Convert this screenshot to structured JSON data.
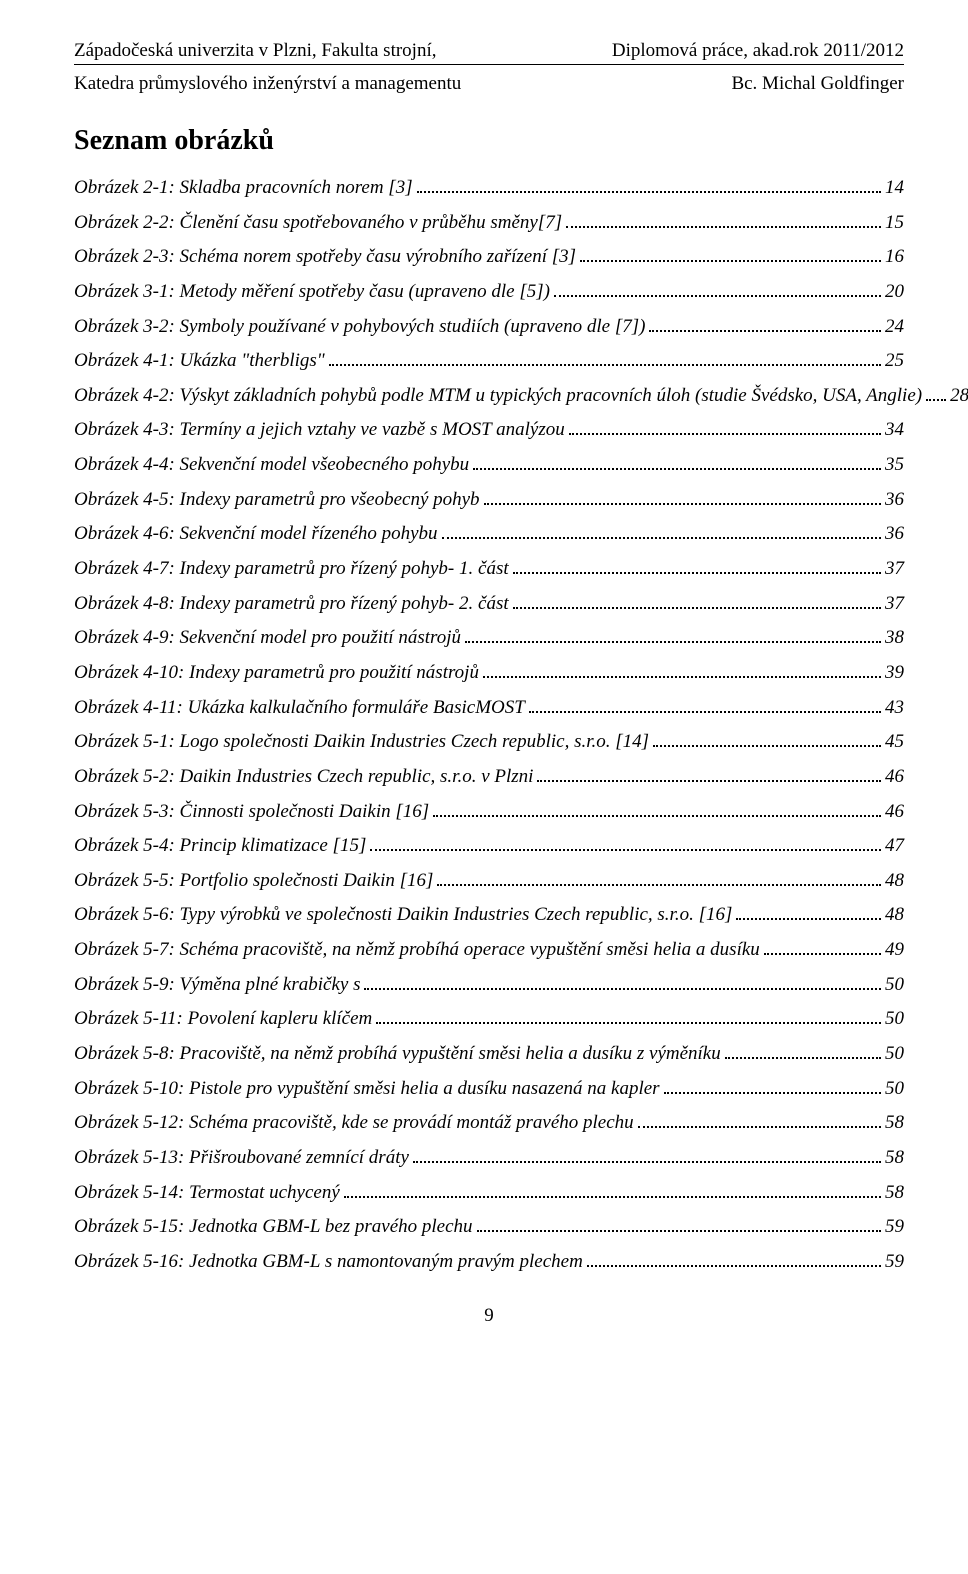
{
  "header": {
    "left1": "Západočeská univerzita v Plzni, Fakulta strojní,",
    "right1": "Diplomová práce, akad.rok 2011/2012",
    "left2": "Katedra průmyslového inženýrství a managementu",
    "right2": "Bc. Michal Goldfinger"
  },
  "title": "Seznam obrázků",
  "entries": [
    {
      "label": "Obrázek 2-1: Skladba pracovních norem [3]",
      "page": "14"
    },
    {
      "label": "Obrázek 2-2: Členění času spotřebovaného v průběhu směny[7]",
      "page": "15"
    },
    {
      "label": "Obrázek 2-3: Schéma norem spotřeby času výrobního zařízení [3]",
      "page": "16"
    },
    {
      "label": "Obrázek 3-1: Metody měření spotřeby času (upraveno dle [5])",
      "page": "20"
    },
    {
      "label": "Obrázek 3-2: Symboly používané v pohybových studiích (upraveno dle [7])",
      "page": "24"
    },
    {
      "label": "Obrázek 4-1: Ukázka \"therbligs\"",
      "page": "25"
    },
    {
      "label": "Obrázek 4-2: Výskyt základních pohybů podle MTM u typických pracovních úloh (studie Švédsko, USA, Anglie)",
      "page": "28"
    },
    {
      "label": "Obrázek 4-3: Termíny a jejich vztahy ve vazbě s MOST analýzou",
      "page": "34"
    },
    {
      "label": "Obrázek 4-4: Sekvenční model všeobecného pohybu",
      "page": "35"
    },
    {
      "label": "Obrázek 4-5: Indexy parametrů pro všeobecný pohyb",
      "page": "36"
    },
    {
      "label": "Obrázek 4-6: Sekvenční model řízeného pohybu",
      "page": "36"
    },
    {
      "label": "Obrázek 4-7: Indexy parametrů pro řízený pohyb- 1. část",
      "page": "37"
    },
    {
      "label": "Obrázek 4-8: Indexy parametrů pro řízený pohyb- 2. část",
      "page": "37"
    },
    {
      "label": "Obrázek 4-9: Sekvenční model pro použití nástrojů",
      "page": "38"
    },
    {
      "label": "Obrázek 4-10: Indexy parametrů pro použití nástrojů",
      "page": "39"
    },
    {
      "label": "Obrázek 4-11: Ukázka kalkulačního formuláře BasicMOST",
      "page": "43"
    },
    {
      "label": "Obrázek 5-1: Logo společnosti Daikin Industries Czech republic, s.r.o. [14]",
      "page": "45"
    },
    {
      "label": "Obrázek 5-2: Daikin Industries Czech republic, s.r.o. v Plzni",
      "page": "46"
    },
    {
      "label": "Obrázek 5-3: Činnosti společnosti Daikin [16]",
      "page": "46"
    },
    {
      "label": "Obrázek 5-4: Princip klimatizace [15]",
      "page": "47"
    },
    {
      "label": "Obrázek 5-5: Portfolio společnosti Daikin [16]",
      "page": "48"
    },
    {
      "label": "Obrázek 5-6: Typy výrobků ve společnosti Daikin Industries Czech republic, s.r.o. [16]",
      "page": "48"
    },
    {
      "label": "Obrázek 5-7: Schéma pracoviště, na němž probíhá operace vypuštění směsi helia a dusíku",
      "page": "49"
    },
    {
      "label": "Obrázek 5-9: Výměna plné krabičky s",
      "page": "50"
    },
    {
      "label": "Obrázek 5-11: Povolení kapleru klíčem",
      "page": "50"
    },
    {
      "label": "Obrázek 5-8: Pracoviště, na němž probíhá vypuštění směsi helia a dusíku z výměníku",
      "page": "50"
    },
    {
      "label": "Obrázek 5-10: Pistole pro vypuštění směsi helia a dusíku nasazená na kapler",
      "page": "50"
    },
    {
      "label": "Obrázek 5-12: Schéma pracoviště, kde se provádí montáž pravého plechu",
      "page": "58"
    },
    {
      "label": "Obrázek 5-13: Přišroubované zemnící dráty",
      "page": "58"
    },
    {
      "label": "Obrázek 5-14: Termostat uchycený",
      "page": "58"
    },
    {
      "label": "Obrázek 5-15: Jednotka GBM-L bez pravého plechu",
      "page": "59"
    },
    {
      "label": "Obrázek 5-16: Jednotka GBM-L s namontovaným pravým plechem",
      "page": "59"
    }
  ],
  "pageNumber": "9"
}
